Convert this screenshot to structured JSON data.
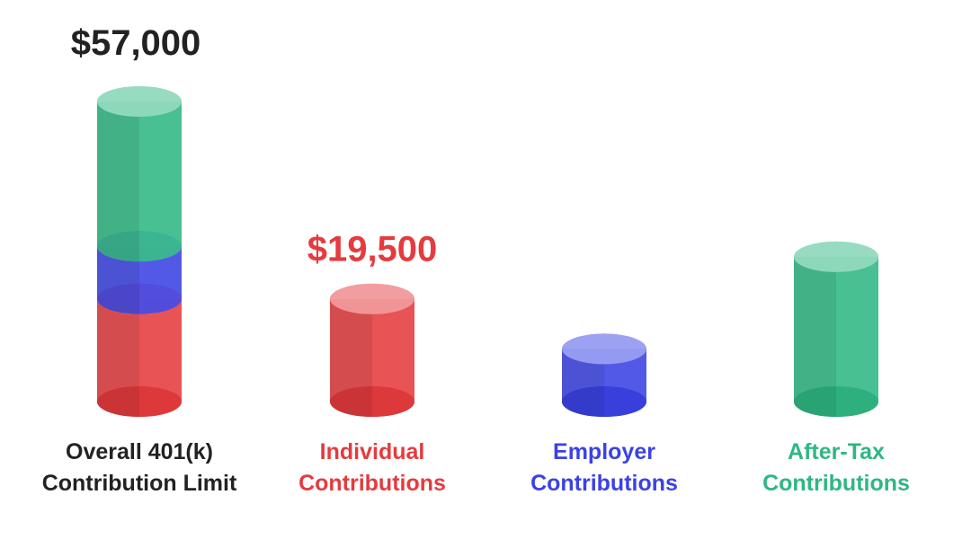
{
  "chart_data": {
    "type": "cylinder",
    "total": {
      "name": "Overall 401(k) Contribution Limit",
      "value": 57000,
      "value_label": "$57,000",
      "color": "#222222"
    },
    "series": [
      {
        "name": "Individual Contributions",
        "color": "#e53b3e",
        "value": 19500,
        "value_label": "$19,500"
      },
      {
        "name": "Employer Contributions",
        "color": "#3b42e4",
        "value": 10000
      },
      {
        "name": "After-Tax Contributions",
        "color": "#2fb783",
        "value": 27500
      }
    ]
  }
}
